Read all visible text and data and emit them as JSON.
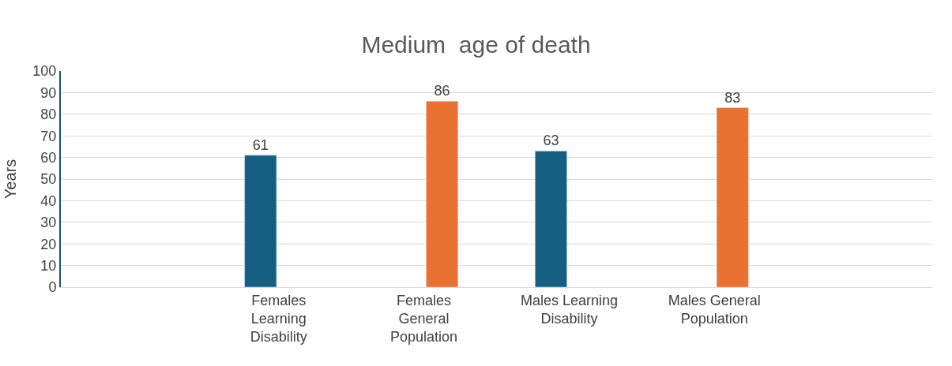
{
  "chart_data": {
    "type": "bar",
    "title": "Medium  age of death",
    "ylabel": "Years",
    "categories": [
      null,
      "Females Learning Disability",
      "Females General Population",
      "Males Learning Disability",
      "Males General Population",
      null
    ],
    "series": [
      {
        "color": "#156082",
        "values": [
          null,
          61,
          null,
          63,
          null,
          null
        ]
      },
      {
        "color": "#e97132",
        "values": [
          null,
          null,
          86,
          null,
          83,
          null
        ]
      }
    ],
    "ylim": [
      0,
      100
    ],
    "yticks": [
      0,
      10,
      20,
      30,
      40,
      50,
      60,
      70,
      80,
      90,
      100
    ],
    "grid": "y",
    "legend": false,
    "data_labels": true
  }
}
